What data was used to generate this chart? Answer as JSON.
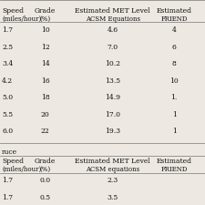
{
  "bg_color": "#ede8e2",
  "text_color": "#111111",
  "font_size": 5.5,
  "table1_rows": [
    [
      "1.7",
      "10",
      "4.6",
      "4"
    ],
    [
      "2.5",
      "12",
      "7.0",
      "6"
    ],
    [
      "3.4",
      "14",
      "10.2",
      "8"
    ],
    [
      "4.2",
      "16",
      "13.5",
      "10"
    ],
    [
      "5.0",
      "18",
      "14.9",
      "1."
    ],
    [
      "5.5",
      "20",
      "17.0",
      "1"
    ],
    [
      "6.0",
      "22",
      "19.3",
      "1"
    ]
  ],
  "table2_rows": [
    [
      "1.7",
      "0.0",
      "2.3",
      ""
    ],
    [
      "1.7",
      "0.5",
      "3.5",
      ""
    ]
  ],
  "section_label": "ruce"
}
